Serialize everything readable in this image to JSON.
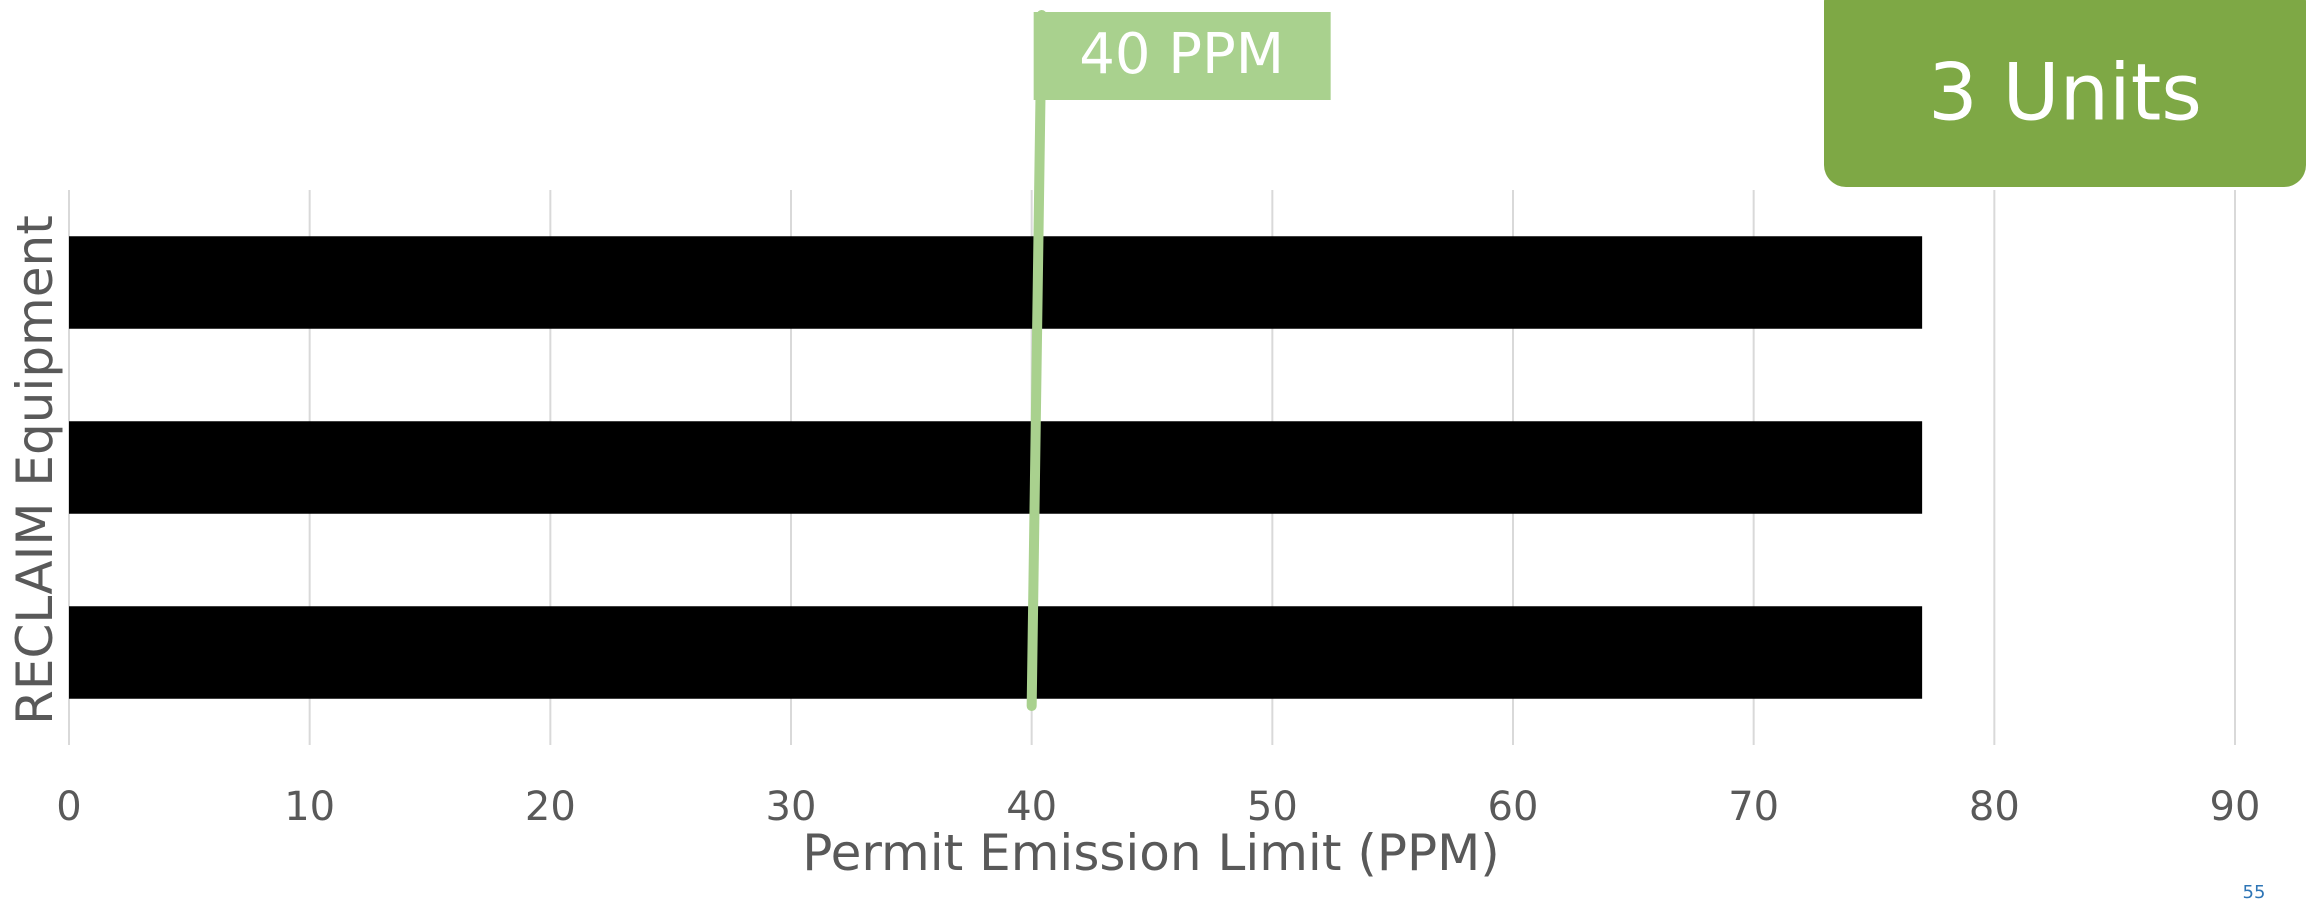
{
  "chart_data": {
    "type": "bar",
    "orientation": "horizontal",
    "categories": [
      "",
      "",
      ""
    ],
    "values": [
      77,
      77,
      77
    ],
    "xlabel": "Permit Emission Limit (PPM)",
    "ylabel": "RECLAIM Equipment",
    "xlim": [
      0,
      90
    ],
    "xticks": [
      0,
      10,
      20,
      30,
      40,
      50,
      60,
      70,
      80,
      90
    ],
    "grid": true,
    "bar_color": "#000000",
    "reference_line": {
      "value": 40,
      "label": "40 PPM",
      "color": "#a9d18e"
    },
    "annotation": {
      "text": "3 Units",
      "color": "#7ea845"
    }
  },
  "page_number": "55"
}
